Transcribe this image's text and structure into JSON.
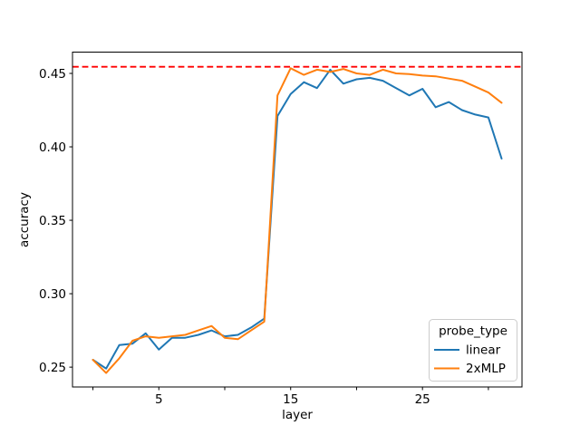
{
  "chart_data": {
    "type": "line",
    "title": "",
    "xlabel": "layer",
    "ylabel": "accuracy",
    "x": [
      0,
      1,
      2,
      3,
      4,
      5,
      6,
      7,
      8,
      9,
      10,
      11,
      12,
      13,
      14,
      15,
      16,
      17,
      18,
      19,
      20,
      21,
      22,
      23,
      24,
      25,
      26,
      27,
      28,
      29,
      30,
      31
    ],
    "series": [
      {
        "name": "linear",
        "color": "#1f77b4",
        "values": [
          0.255,
          0.249,
          0.265,
          0.266,
          0.273,
          0.262,
          0.27,
          0.27,
          0.272,
          0.275,
          0.271,
          0.272,
          0.277,
          0.283,
          0.421,
          0.436,
          0.444,
          0.44,
          0.4525,
          0.443,
          0.446,
          0.447,
          0.445,
          0.44,
          0.435,
          0.4395,
          0.427,
          0.4305,
          0.425,
          0.422,
          0.42,
          0.392
        ]
      },
      {
        "name": "2xMLP",
        "color": "#ff7f0e",
        "values": [
          0.255,
          0.246,
          0.256,
          0.268,
          0.271,
          0.27,
          0.271,
          0.272,
          0.275,
          0.278,
          0.27,
          0.269,
          0.275,
          0.281,
          0.435,
          0.4535,
          0.449,
          0.4525,
          0.451,
          0.453,
          0.45,
          0.449,
          0.4525,
          0.45,
          0.4495,
          0.4485,
          0.448,
          0.4465,
          0.445,
          0.441,
          0.437,
          0.43
        ]
      }
    ],
    "reference_line": {
      "value": 0.4545,
      "color": "#ff0000",
      "style": "dashed"
    },
    "legend": {
      "title": "probe_type",
      "position": "lower right"
    },
    "xlim": [
      -1.55,
      32.55
    ],
    "ylim": [
      0.2365,
      0.4645
    ],
    "xticks": [
      0,
      5,
      10,
      15,
      20,
      25,
      30
    ],
    "xtick_labels": [
      "",
      "5",
      "",
      "15",
      "",
      "25",
      ""
    ],
    "yticks": [
      0.25,
      0.3,
      0.35,
      0.4,
      0.45
    ],
    "ytick_labels": [
      "0.25",
      "0.30",
      "0.35",
      "0.40",
      "0.45"
    ],
    "grid": false,
    "legend_position": "lower right"
  }
}
